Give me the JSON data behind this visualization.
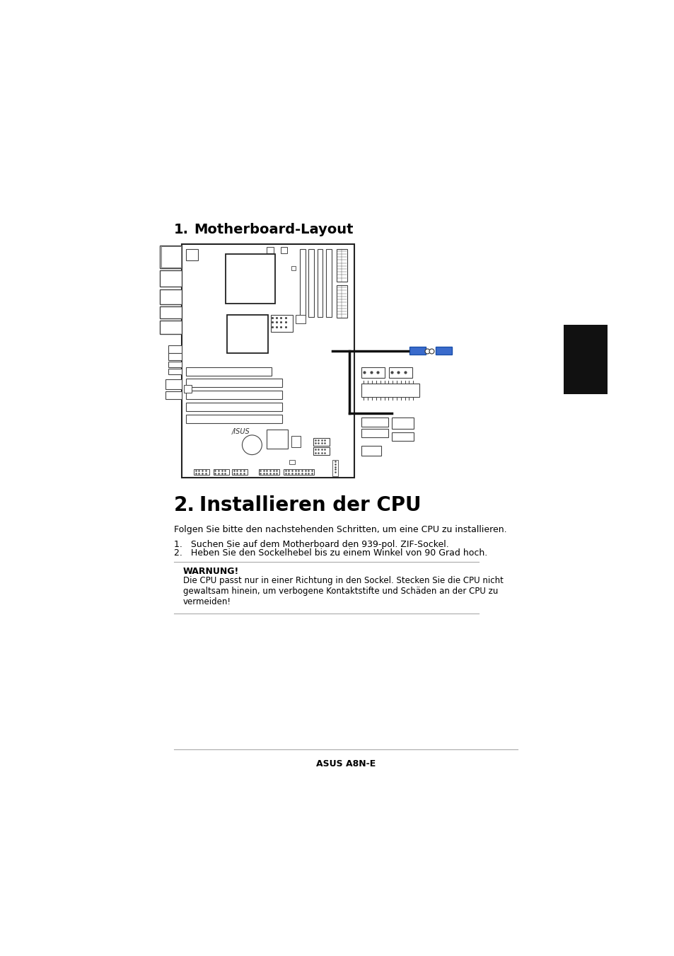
{
  "title1_num": "1.",
  "title1_text": "        Motherboard-Layout",
  "title2": "2.    Installieren der CPU",
  "body_text": "Folgen Sie bitte den nachstehenden Schritten, um eine CPU zu installieren.",
  "list_item1": "Suchen Sie auf dem Motherboard den 939-pol. ZIF-Sockel.",
  "list_item2": "Heben Sie den Sockelhebel bis zu einem Winkel von 90 Grad hoch.",
  "warning_title": "WARNUNG!",
  "warning_text": "Die CPU passt nur in einer Richtung in den Sockel. Stecken Sie die CPU nicht\ngewaltsam hinein, um verbogene Kontaktstifte und Schäden an der CPU zu\nvermeiden!",
  "footer_text": "ASUS A8N-E",
  "bg_color": "#ffffff",
  "text_color": "#000000",
  "sidebar_color": "#111111",
  "line_color": "#aaaaaa",
  "board_edge": "#222222",
  "comp_edge": "#444444",
  "blue_color": "#3a6bcc",
  "blue_fill": "#3a6bcc"
}
